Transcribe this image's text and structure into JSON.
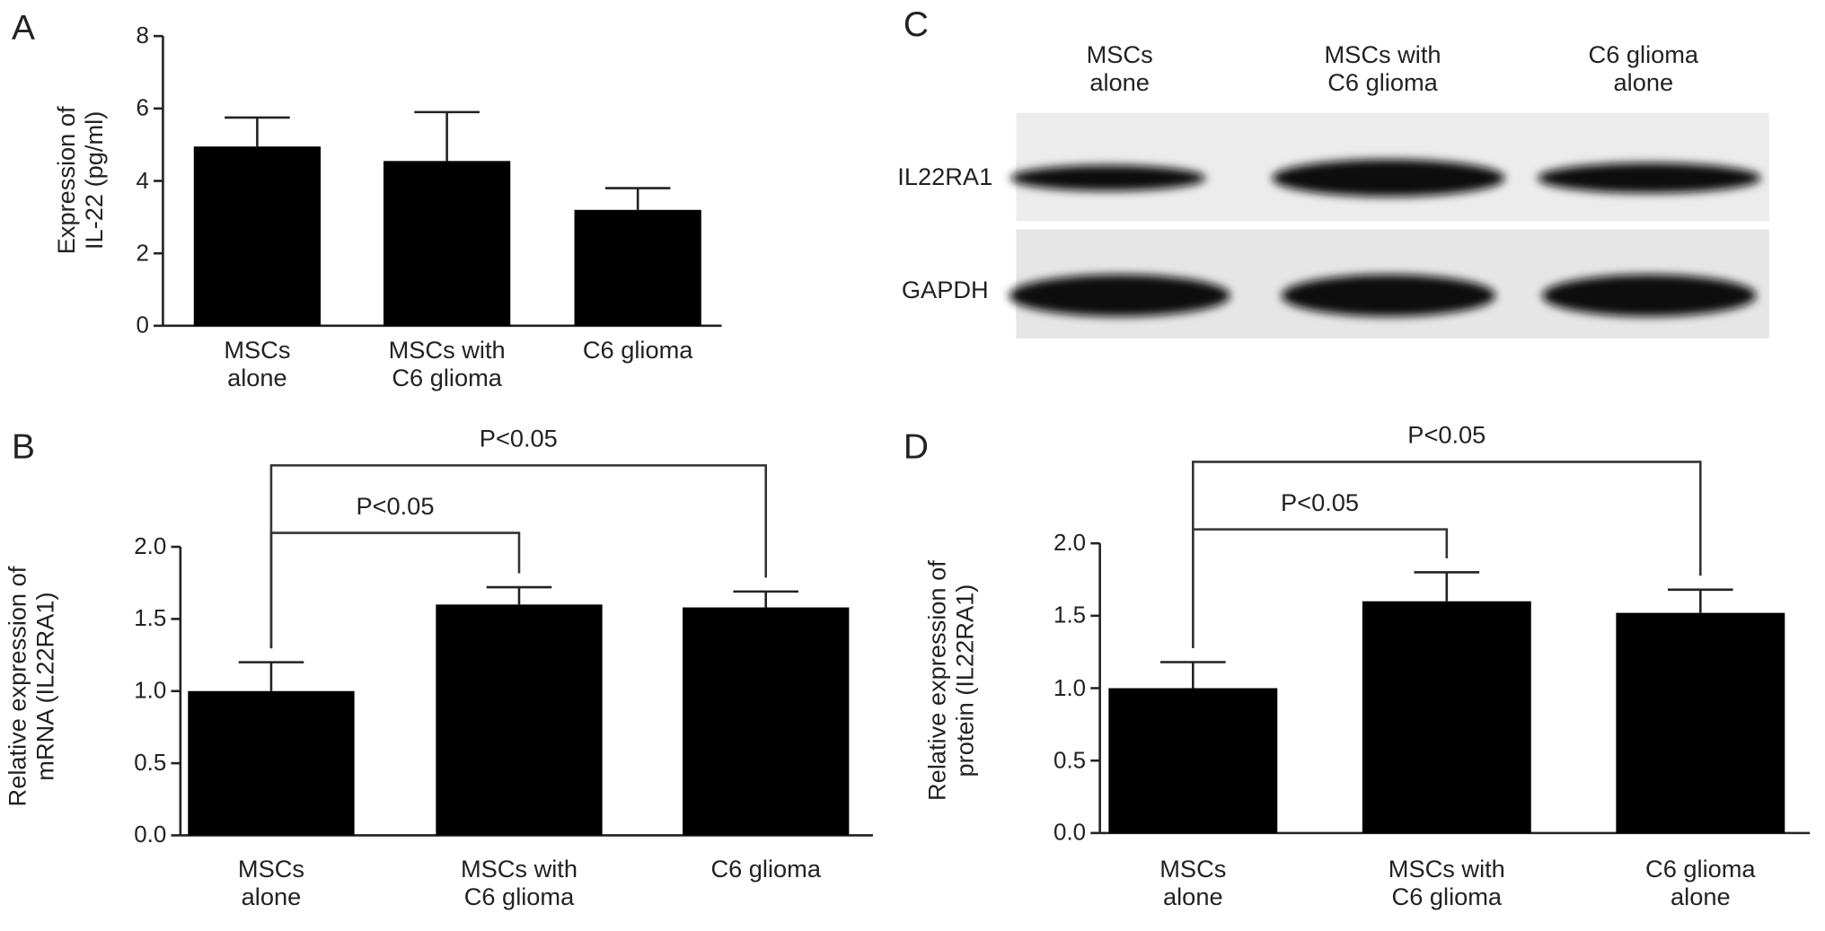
{
  "chart_data": [
    {
      "type": "bar",
      "panel": "A",
      "ylabel": "Expression of\nIL-22 (pg/ml)",
      "categories": [
        "MSCs\nalone",
        "MSCs with\nC6 glioma",
        "C6 glioma"
      ],
      "values": [
        4.95,
        4.55,
        3.2
      ],
      "errors": [
        0.8,
        1.35,
        0.6
      ],
      "color": "#000000",
      "ylim": [
        0,
        8
      ],
      "yticks": [
        0,
        2,
        4,
        6,
        8
      ]
    },
    {
      "type": "bar",
      "panel": "B",
      "ylabel": "Relative expression of\nmRNA (IL22RA1)",
      "categories": [
        "MSCs\nalone",
        "MSCs with\nC6 glioma",
        "C6 glioma"
      ],
      "values": [
        1.0,
        1.6,
        1.58
      ],
      "errors": [
        0.2,
        0.12,
        0.11
      ],
      "color": "#000000",
      "ylim": [
        0,
        2
      ],
      "yticks": [
        {
          "value": 0,
          "label": "0.0"
        },
        0.5,
        {
          "value": 1,
          "label": "1.0"
        },
        1.5,
        {
          "value": 2,
          "label": "2.0"
        }
      ],
      "comparisons": [
        {
          "label": "P<0.05",
          "groups": [
            0,
            1
          ]
        },
        {
          "label": "P<0.05",
          "groups": [
            0,
            2
          ]
        }
      ]
    },
    {
      "type": "bar",
      "panel": "D",
      "ylabel": "Relative expression of\nprotein (IL22RA1)",
      "categories": [
        "MSCs\nalone",
        "MSCs with\nC6 glioma",
        "C6 glioma\nalone"
      ],
      "values": [
        1.0,
        1.6,
        1.52
      ],
      "errors": [
        0.18,
        0.2,
        0.16
      ],
      "color": "#000000",
      "ylim": [
        0,
        2
      ],
      "yticks": [
        {
          "value": 0,
          "label": "0.0"
        },
        0.5,
        {
          "value": 1,
          "label": "1.0"
        },
        1.5,
        {
          "value": 2,
          "label": "2.0"
        }
      ],
      "comparisons": [
        {
          "label": "P<0.05",
          "groups": [
            0,
            1
          ]
        },
        {
          "label": "P<0.05",
          "groups": [
            0,
            2
          ]
        }
      ]
    }
  ],
  "blot": {
    "panel": "C",
    "columns": [
      "MSCs\nalone",
      "MSCs with\nC6 glioma",
      "C6 glioma\nalone"
    ],
    "rows": [
      "IL22RA1",
      "GAPDH"
    ]
  }
}
